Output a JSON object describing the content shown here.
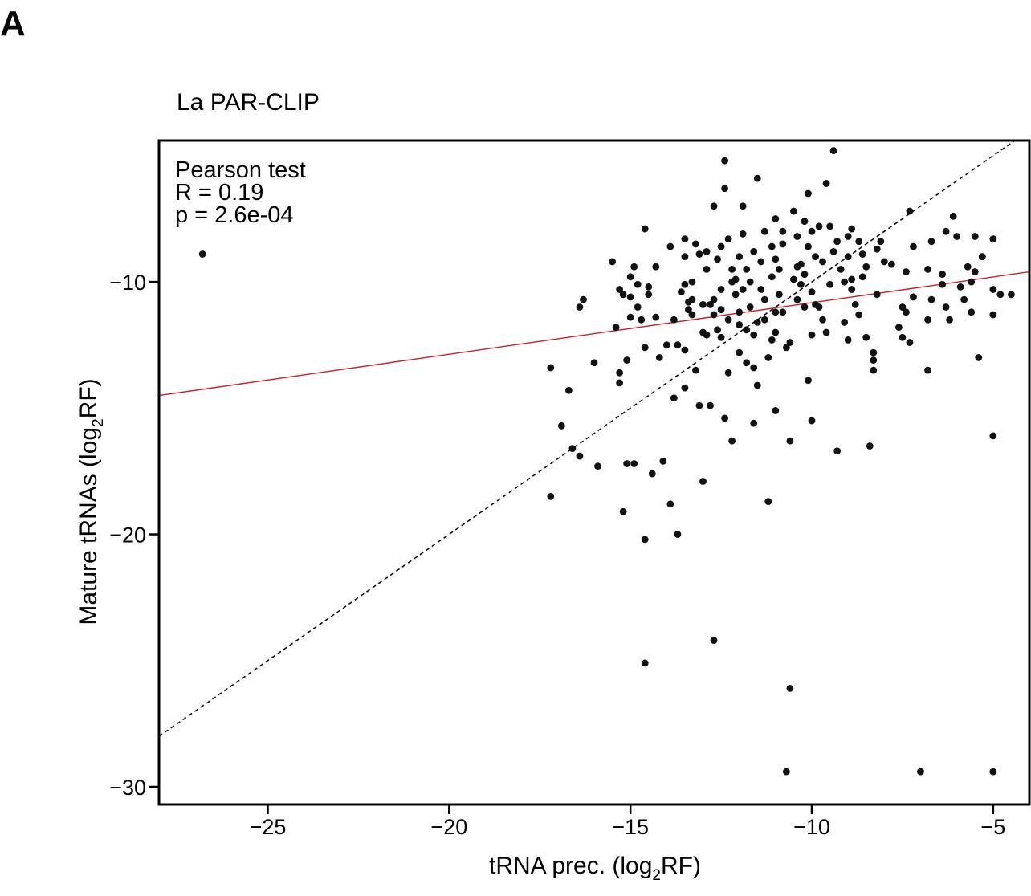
{
  "panel_label": "A",
  "chart_data": {
    "type": "scatter",
    "title": "La PAR-CLIP",
    "xlabel": {
      "pre": "tRNA prec. (log",
      "sub": "2",
      "post": "RF)"
    },
    "ylabel": {
      "pre": "Mature tRNAs (log",
      "sub": "2",
      "post": "RF)"
    },
    "xlim": [
      -28,
      -4
    ],
    "ylim": [
      -30.7,
      -4.4
    ],
    "xticks": [
      -25,
      -20,
      -15,
      -10,
      -5
    ],
    "yticks": [
      -10,
      -20,
      -30
    ],
    "xtick_labels": [
      "−25",
      "−20",
      "−15",
      "−10",
      "−5"
    ],
    "ytick_labels": [
      "−10",
      "−20",
      "−30"
    ],
    "annotation": [
      "Pearson test",
      "R = 0.19",
      "p = 2.6e-04"
    ],
    "identity_line": {
      "style": "dashed",
      "color": "#000000",
      "slope": 1,
      "intercept": 0
    },
    "fit_line": {
      "color": "#cc2020",
      "points": [
        [
          -28,
          -14.5
        ],
        [
          -4,
          -9.6
        ]
      ]
    },
    "point_color": "#111111",
    "points": [
      [
        -26.8,
        -8.9
      ],
      [
        -17.2,
        -13.4
      ],
      [
        -17.2,
        -18.5
      ],
      [
        -16.9,
        -15.7
      ],
      [
        -16.7,
        -14.3
      ],
      [
        -16.6,
        -16.6
      ],
      [
        -16.4,
        -16.9
      ],
      [
        -16.4,
        -11.0
      ],
      [
        -16.3,
        -10.7
      ],
      [
        -16.0,
        -13.2
      ],
      [
        -15.9,
        -17.3
      ],
      [
        -15.5,
        -9.2
      ],
      [
        -15.4,
        -11.8
      ],
      [
        -15.3,
        -13.6
      ],
      [
        -15.3,
        -14.0
      ],
      [
        -15.3,
        -10.3
      ],
      [
        -15.2,
        -10.5
      ],
      [
        -15.2,
        -19.1
      ],
      [
        -15.1,
        -17.2
      ],
      [
        -15.1,
        -13.1
      ],
      [
        -15.0,
        -11.4
      ],
      [
        -15.0,
        -9.8
      ],
      [
        -15.0,
        -10.6
      ],
      [
        -14.9,
        -9.4
      ],
      [
        -14.9,
        -17.2
      ],
      [
        -14.8,
        -10.1
      ],
      [
        -14.8,
        -11.0
      ],
      [
        -14.7,
        -11.5
      ],
      [
        -14.6,
        -7.9
      ],
      [
        -14.6,
        -12.6
      ],
      [
        -14.6,
        -20.2
      ],
      [
        -14.6,
        -25.1
      ],
      [
        -14.5,
        -10.5
      ],
      [
        -14.5,
        -10.2
      ],
      [
        -14.4,
        -17.6
      ],
      [
        -14.3,
        -9.4
      ],
      [
        -14.2,
        -13.0
      ],
      [
        -14.1,
        -17.1
      ],
      [
        -14.0,
        -12.5
      ],
      [
        -13.9,
        -8.6
      ],
      [
        -13.9,
        -18.8
      ],
      [
        -13.8,
        -11.5
      ],
      [
        -13.7,
        -12.5
      ],
      [
        -13.7,
        -20.0
      ],
      [
        -13.6,
        -10.4
      ],
      [
        -13.5,
        -8.3
      ],
      [
        -13.5,
        -9.0
      ],
      [
        -13.5,
        -12.7
      ],
      [
        -13.5,
        -14.2
      ],
      [
        -13.4,
        -10.8
      ],
      [
        -13.4,
        -11.1
      ],
      [
        -13.3,
        -10.0
      ],
      [
        -13.3,
        -10.7
      ],
      [
        -13.3,
        -11.3
      ],
      [
        -13.2,
        -8.5
      ],
      [
        -13.2,
        -13.5
      ],
      [
        -13.1,
        -8.9
      ],
      [
        -13.1,
        -14.9
      ],
      [
        -13.0,
        -17.9
      ],
      [
        -13.0,
        -12.0
      ],
      [
        -12.9,
        -9.5
      ],
      [
        -12.9,
        -8.8
      ],
      [
        -12.8,
        -14.9
      ],
      [
        -12.8,
        -10.9
      ],
      [
        -12.7,
        -11.3
      ],
      [
        -12.7,
        -7.0
      ],
      [
        -12.6,
        -11.9
      ],
      [
        -12.5,
        -12.2
      ],
      [
        -12.5,
        -11.1
      ],
      [
        -12.5,
        -10.3
      ],
      [
        -12.5,
        -8.6
      ],
      [
        -12.4,
        -15.4
      ],
      [
        -12.4,
        -5.2
      ],
      [
        -12.4,
        -6.3
      ],
      [
        -12.3,
        -8.3
      ],
      [
        -12.3,
        -13.6
      ],
      [
        -12.2,
        -16.3
      ],
      [
        -12.2,
        -9.5
      ],
      [
        -12.2,
        -10.0
      ],
      [
        -12.1,
        -10.5
      ],
      [
        -12.0,
        -9.0
      ],
      [
        -12.0,
        -11.2
      ],
      [
        -12.0,
        -11.7
      ],
      [
        -12.0,
        -12.8
      ],
      [
        -11.9,
        -7.0
      ],
      [
        -11.9,
        -8.1
      ],
      [
        -11.8,
        -9.5
      ],
      [
        -11.8,
        -13.2
      ],
      [
        -11.7,
        -11.0
      ],
      [
        -11.7,
        -10.0
      ],
      [
        -11.6,
        -12.1
      ],
      [
        -11.6,
        -8.8
      ],
      [
        -11.6,
        -13.4
      ],
      [
        -11.5,
        -14.1
      ],
      [
        -11.5,
        -5.9
      ],
      [
        -11.4,
        -9.2
      ],
      [
        -11.3,
        -11.5
      ],
      [
        -11.3,
        -10.7
      ],
      [
        -11.2,
        -13.0
      ],
      [
        -11.2,
        -18.7
      ],
      [
        -11.1,
        -12.3
      ],
      [
        -11.1,
        -9.8
      ],
      [
        -11.1,
        -8.6
      ],
      [
        -11.0,
        -11.2
      ],
      [
        -11.0,
        -12.0
      ],
      [
        -11.0,
        -15.1
      ],
      [
        -11.0,
        -7.5
      ],
      [
        -10.9,
        -9.5
      ],
      [
        -10.9,
        -10.5
      ],
      [
        -10.8,
        -8.0
      ],
      [
        -10.8,
        -11.2
      ],
      [
        -10.7,
        -29.4
      ],
      [
        -10.6,
        -26.1
      ],
      [
        -10.6,
        -16.3
      ],
      [
        -10.6,
        -12.4
      ],
      [
        -10.5,
        -9.9
      ],
      [
        -10.5,
        -7.2
      ],
      [
        -10.4,
        -8.2
      ],
      [
        -10.4,
        -10.7
      ],
      [
        -10.3,
        -9.3
      ],
      [
        -10.2,
        -11.0
      ],
      [
        -10.2,
        -7.6
      ],
      [
        -10.1,
        -13.9
      ],
      [
        -10.1,
        -8.6
      ],
      [
        -10.1,
        -6.5
      ],
      [
        -10.0,
        -12.1
      ],
      [
        -10.0,
        -15.5
      ],
      [
        -10.0,
        -10.4
      ],
      [
        -9.9,
        -9.0
      ],
      [
        -9.9,
        -10.9
      ],
      [
        -9.8,
        -7.8
      ],
      [
        -9.8,
        -11.0
      ],
      [
        -9.7,
        -9.2
      ],
      [
        -9.6,
        -6.1
      ],
      [
        -9.6,
        -12.0
      ],
      [
        -9.5,
        -10.1
      ],
      [
        -9.5,
        -7.8
      ],
      [
        -9.4,
        -8.8
      ],
      [
        -9.4,
        -4.8
      ],
      [
        -9.3,
        -16.7
      ],
      [
        -9.2,
        -9.5
      ],
      [
        -9.1,
        -10.0
      ],
      [
        -9.0,
        -8.2
      ],
      [
        -9.0,
        -12.3
      ],
      [
        -8.9,
        -7.9
      ],
      [
        -8.9,
        -9.9
      ],
      [
        -8.8,
        -10.9
      ],
      [
        -8.7,
        -8.4
      ],
      [
        -8.7,
        -11.3
      ],
      [
        -8.6,
        -8.9
      ],
      [
        -8.5,
        -9.4
      ],
      [
        -8.5,
        -12.2
      ],
      [
        -8.4,
        -16.5
      ],
      [
        -8.3,
        -13.5
      ],
      [
        -8.3,
        -13.1
      ],
      [
        -8.3,
        -12.8
      ],
      [
        -8.2,
        -10.5
      ],
      [
        -8.2,
        -8.7
      ],
      [
        -8.1,
        -8.4
      ],
      [
        -8.0,
        -9.2
      ],
      [
        -7.8,
        -9.3
      ],
      [
        -7.6,
        -11.8
      ],
      [
        -7.5,
        -12.2
      ],
      [
        -7.5,
        -11.0
      ],
      [
        -7.4,
        -11.2
      ],
      [
        -7.4,
        -9.6
      ],
      [
        -7.3,
        -12.4
      ],
      [
        -7.3,
        -7.2
      ],
      [
        -7.2,
        -10.6
      ],
      [
        -7.2,
        -8.6
      ],
      [
        -7.0,
        -29.4
      ],
      [
        -6.8,
        -13.5
      ],
      [
        -6.8,
        -11.5
      ],
      [
        -6.8,
        -9.5
      ],
      [
        -6.7,
        -10.7
      ],
      [
        -6.7,
        -8.4
      ],
      [
        -6.4,
        -9.7
      ],
      [
        -6.4,
        -10.1
      ],
      [
        -6.3,
        -8.0
      ],
      [
        -6.3,
        -11.0
      ],
      [
        -6.2,
        -11.5
      ],
      [
        -6.1,
        -7.4
      ],
      [
        -6.0,
        -8.2
      ],
      [
        -5.9,
        -10.2
      ],
      [
        -5.8,
        -10.7
      ],
      [
        -5.7,
        -9.4
      ],
      [
        -5.6,
        -10.0
      ],
      [
        -5.6,
        -11.2
      ],
      [
        -5.5,
        -8.2
      ],
      [
        -5.5,
        -9.6
      ],
      [
        -5.4,
        -13.0
      ],
      [
        -5.3,
        -9.0
      ],
      [
        -5.3,
        -9.0
      ],
      [
        -5.0,
        -11.3
      ],
      [
        -5.0,
        -16.1
      ],
      [
        -5.0,
        -29.4
      ],
      [
        -5.0,
        -8.3
      ],
      [
        -5.0,
        -10.3
      ],
      [
        -4.8,
        -10.5
      ],
      [
        -4.5,
        -10.5
      ],
      [
        -10.8,
        -8.5
      ],
      [
        -11.4,
        -10.3
      ],
      [
        -12.6,
        -9.1
      ],
      [
        -9.7,
        -11.5
      ],
      [
        -10.3,
        -10.1
      ],
      [
        -11.8,
        -11.9
      ],
      [
        -13.0,
        -10.9
      ],
      [
        -8.9,
        -10.3
      ],
      [
        -12.1,
        -9.9
      ],
      [
        -10.4,
        -9.4
      ],
      [
        -11.3,
        -8.0
      ],
      [
        -9.0,
        -9.0
      ],
      [
        -12.9,
        -12.1
      ],
      [
        -11.5,
        -11.6
      ],
      [
        -10.0,
        -8.0
      ],
      [
        -9.3,
        -8.4
      ],
      [
        -8.6,
        -9.8
      ],
      [
        -11.9,
        -10.3
      ],
      [
        -10.7,
        -12.6
      ],
      [
        -12.3,
        -11.5
      ],
      [
        -13.5,
        -10.1
      ],
      [
        -10.2,
        -9.7
      ],
      [
        -9.1,
        -11.6
      ],
      [
        -11.0,
        -9.1
      ],
      [
        -12.7,
        -24.2
      ],
      [
        -12.7,
        -10.7
      ],
      [
        -14.3,
        -11.4
      ],
      [
        -13.8,
        -14.6
      ],
      [
        -11.6,
        -15.6
      ]
    ]
  }
}
